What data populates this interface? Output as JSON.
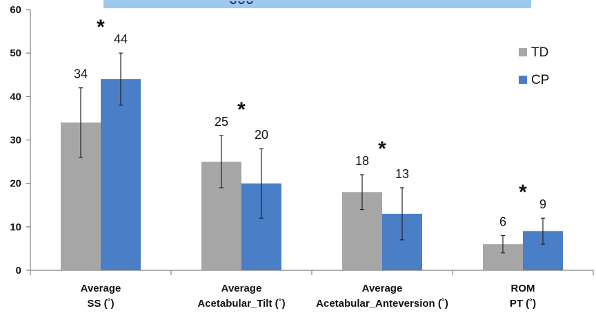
{
  "chart_data": {
    "type": "bar",
    "categories": [
      [
        "Average",
        "SS (˚)"
      ],
      [
        "Average",
        "Acetabular_Tilt (˚)"
      ],
      [
        "Average",
        "Acetabular_Anteversion (˚)"
      ],
      [
        "ROM",
        "PT (˚)"
      ]
    ],
    "series": [
      {
        "name": "TD",
        "color": "#a6a6a6",
        "values": [
          34,
          25,
          18,
          6
        ],
        "error": [
          8,
          6,
          4,
          2
        ]
      },
      {
        "name": "CP",
        "color": "#4a7ec7",
        "values": [
          44,
          20,
          13,
          9
        ],
        "error": [
          6,
          8,
          6,
          3
        ]
      }
    ],
    "significance_marker": "*",
    "significant": [
      true,
      true,
      true,
      true
    ],
    "ylim": [
      0,
      60
    ],
    "yticks": [
      0,
      10,
      20,
      30,
      40,
      50,
      60
    ],
    "legend_position": "top-right",
    "grid": false,
    "header_band_color": "#9ec8ee"
  }
}
